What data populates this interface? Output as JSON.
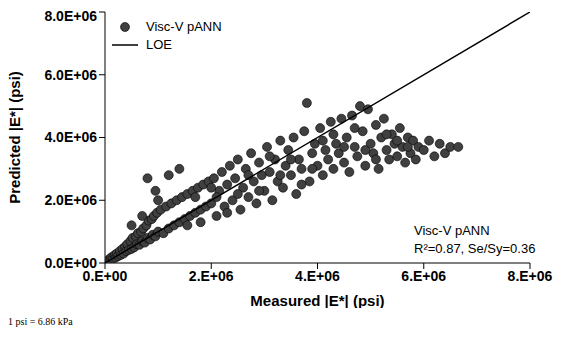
{
  "chart_data": {
    "type": "scatter",
    "x_label": "Measured |E*| (psi)",
    "y_label": "Predicted |E*| (psi)",
    "xlim": [
      0,
      8000000
    ],
    "ylim": [
      0,
      8000000
    ],
    "xticks": [
      {
        "value": 0,
        "label": "0.E+00"
      },
      {
        "value": 2000000,
        "label": "2.E+06"
      },
      {
        "value": 4000000,
        "label": "4.E+06"
      },
      {
        "value": 6000000,
        "label": "6.E+06"
      },
      {
        "value": 8000000,
        "label": "8.E+06"
      }
    ],
    "yticks": [
      {
        "value": 0,
        "label": "0.0E+00"
      },
      {
        "value": 2000000,
        "label": "2.0E+06"
      },
      {
        "value": 4000000,
        "label": "4.0E+06"
      },
      {
        "value": 6000000,
        "label": "6.0E+06"
      },
      {
        "value": 8000000,
        "label": "8.0E+06"
      }
    ],
    "grid": false,
    "legend": "top-left",
    "annotations": [
      "Visc-V pANN",
      "R²=0.87, Se/Sy=0.36"
    ],
    "footnote": "1 psi = 6.86 kPa",
    "series": [
      {
        "name": "Visc-V pANN",
        "type": "scatter",
        "color": "#404040",
        "marker": "circle",
        "x": [
          20000,
          50000,
          80000,
          100000,
          120000,
          150000,
          180000,
          200000,
          220000,
          250000,
          280000,
          300000,
          330000,
          350000,
          380000,
          400000,
          420000,
          450000,
          480000,
          500000,
          520000,
          550000,
          580000,
          600000,
          620000,
          650000,
          680000,
          700000,
          720000,
          750000,
          780000,
          800000,
          820000,
          850000,
          880000,
          900000,
          920000,
          950000,
          980000,
          1000000,
          1050000,
          1100000,
          1150000,
          1200000,
          1250000,
          1300000,
          1350000,
          1400000,
          1450000,
          1500000,
          1550000,
          1600000,
          1650000,
          1700000,
          1750000,
          1800000,
          1850000,
          1900000,
          1950000,
          2000000,
          500000,
          800000,
          950000,
          1200000,
          1400000,
          1000000,
          700000,
          2050000,
          2100000,
          2150000,
          2200000,
          2250000,
          2300000,
          2350000,
          2400000,
          2450000,
          2500000,
          2550000,
          2600000,
          2650000,
          2700000,
          2750000,
          2800000,
          2850000,
          2900000,
          2950000,
          3000000,
          3050000,
          3100000,
          3150000,
          3200000,
          3250000,
          3300000,
          3350000,
          3400000,
          3450000,
          3500000,
          3550000,
          3600000,
          3650000,
          3700000,
          3750000,
          3800000,
          3850000,
          3900000,
          3950000,
          4000000,
          4050000,
          4100000,
          4150000,
          4200000,
          4250000,
          4300000,
          4350000,
          4400000,
          4450000,
          4500000,
          4550000,
          4600000,
          4650000,
          4700000,
          4750000,
          4800000,
          4850000,
          4900000,
          4950000,
          5000000,
          5050000,
          5100000,
          5150000,
          5200000,
          5250000,
          5300000,
          5350000,
          5400000,
          5450000,
          5500000,
          5550000,
          5600000,
          5650000,
          5700000,
          5750000,
          5800000,
          5850000,
          5900000,
          6000000,
          6100000,
          6200000,
          6300000,
          6400000,
          6500000,
          6650000,
          1550000,
          1700000,
          1800000,
          2000000,
          2100000,
          2300000,
          2500000,
          2700000,
          2900000,
          3100000,
          3300000,
          3500000,
          3700000,
          3900000,
          4100000,
          4300000,
          4500000,
          4700000,
          4900000,
          5100000,
          5300000,
          5500000,
          5700000
        ],
        "values": [
          30000,
          60000,
          120000,
          90000,
          180000,
          140000,
          250000,
          170000,
          300000,
          220000,
          380000,
          260000,
          450000,
          300000,
          520000,
          380000,
          600000,
          420000,
          700000,
          450000,
          800000,
          500000,
          850000,
          600000,
          950000,
          580000,
          1000000,
          700000,
          1100000,
          650000,
          1200000,
          800000,
          1350000,
          750000,
          1400000,
          900000,
          1500000,
          850000,
          1600000,
          1000000,
          1700000,
          950000,
          1800000,
          1100000,
          1900000,
          1200000,
          2000000,
          1300000,
          2100000,
          1400000,
          2200000,
          1500000,
          2300000,
          1600000,
          2400000,
          1700000,
          2500000,
          1800000,
          2600000,
          1900000,
          1200000,
          2700000,
          2300000,
          2800000,
          3000000,
          2000000,
          1500000,
          2700000,
          1500000,
          2300000,
          2900000,
          1800000,
          2500000,
          3100000,
          2000000,
          2700000,
          3300000,
          1700000,
          2400000,
          3000000,
          2100000,
          3500000,
          2600000,
          1900000,
          3200000,
          2800000,
          2300000,
          3700000,
          2900000,
          2000000,
          3300000,
          2600000,
          3900000,
          2400000,
          3100000,
          3600000,
          2800000,
          4000000,
          2200000,
          3300000,
          3000000,
          4200000,
          5100000,
          2600000,
          3500000,
          3800000,
          3100000,
          4300000,
          2800000,
          3600000,
          3300000,
          4500000,
          3000000,
          3800000,
          3500000,
          4600000,
          3200000,
          4000000,
          2900000,
          4700000,
          3700000,
          3400000,
          5000000,
          4200000,
          3100000,
          4900000,
          3800000,
          3500000,
          4400000,
          3000000,
          4000000,
          4600000,
          3600000,
          3300000,
          4100000,
          3800000,
          3400000,
          4300000,
          3700000,
          3200000,
          4000000,
          3500000,
          3900000,
          3300000,
          3700000,
          3600000,
          3900000,
          3400000,
          3800000,
          3500000,
          3700000,
          3700000,
          1200000,
          2100000,
          1300000,
          2400000,
          2100000,
          1600000,
          2200000,
          2800000,
          2300000,
          3400000,
          2800000,
          3300000,
          2500000,
          3000000,
          3900000,
          4100000,
          3700000,
          4300000,
          3600000,
          3300000,
          4100000,
          3900000,
          3700000
        ]
      },
      {
        "name": "LOE",
        "type": "line",
        "color": "#000000",
        "line_style": "solid",
        "x": [
          0,
          8000000
        ],
        "values": [
          0,
          8000000
        ]
      }
    ]
  }
}
